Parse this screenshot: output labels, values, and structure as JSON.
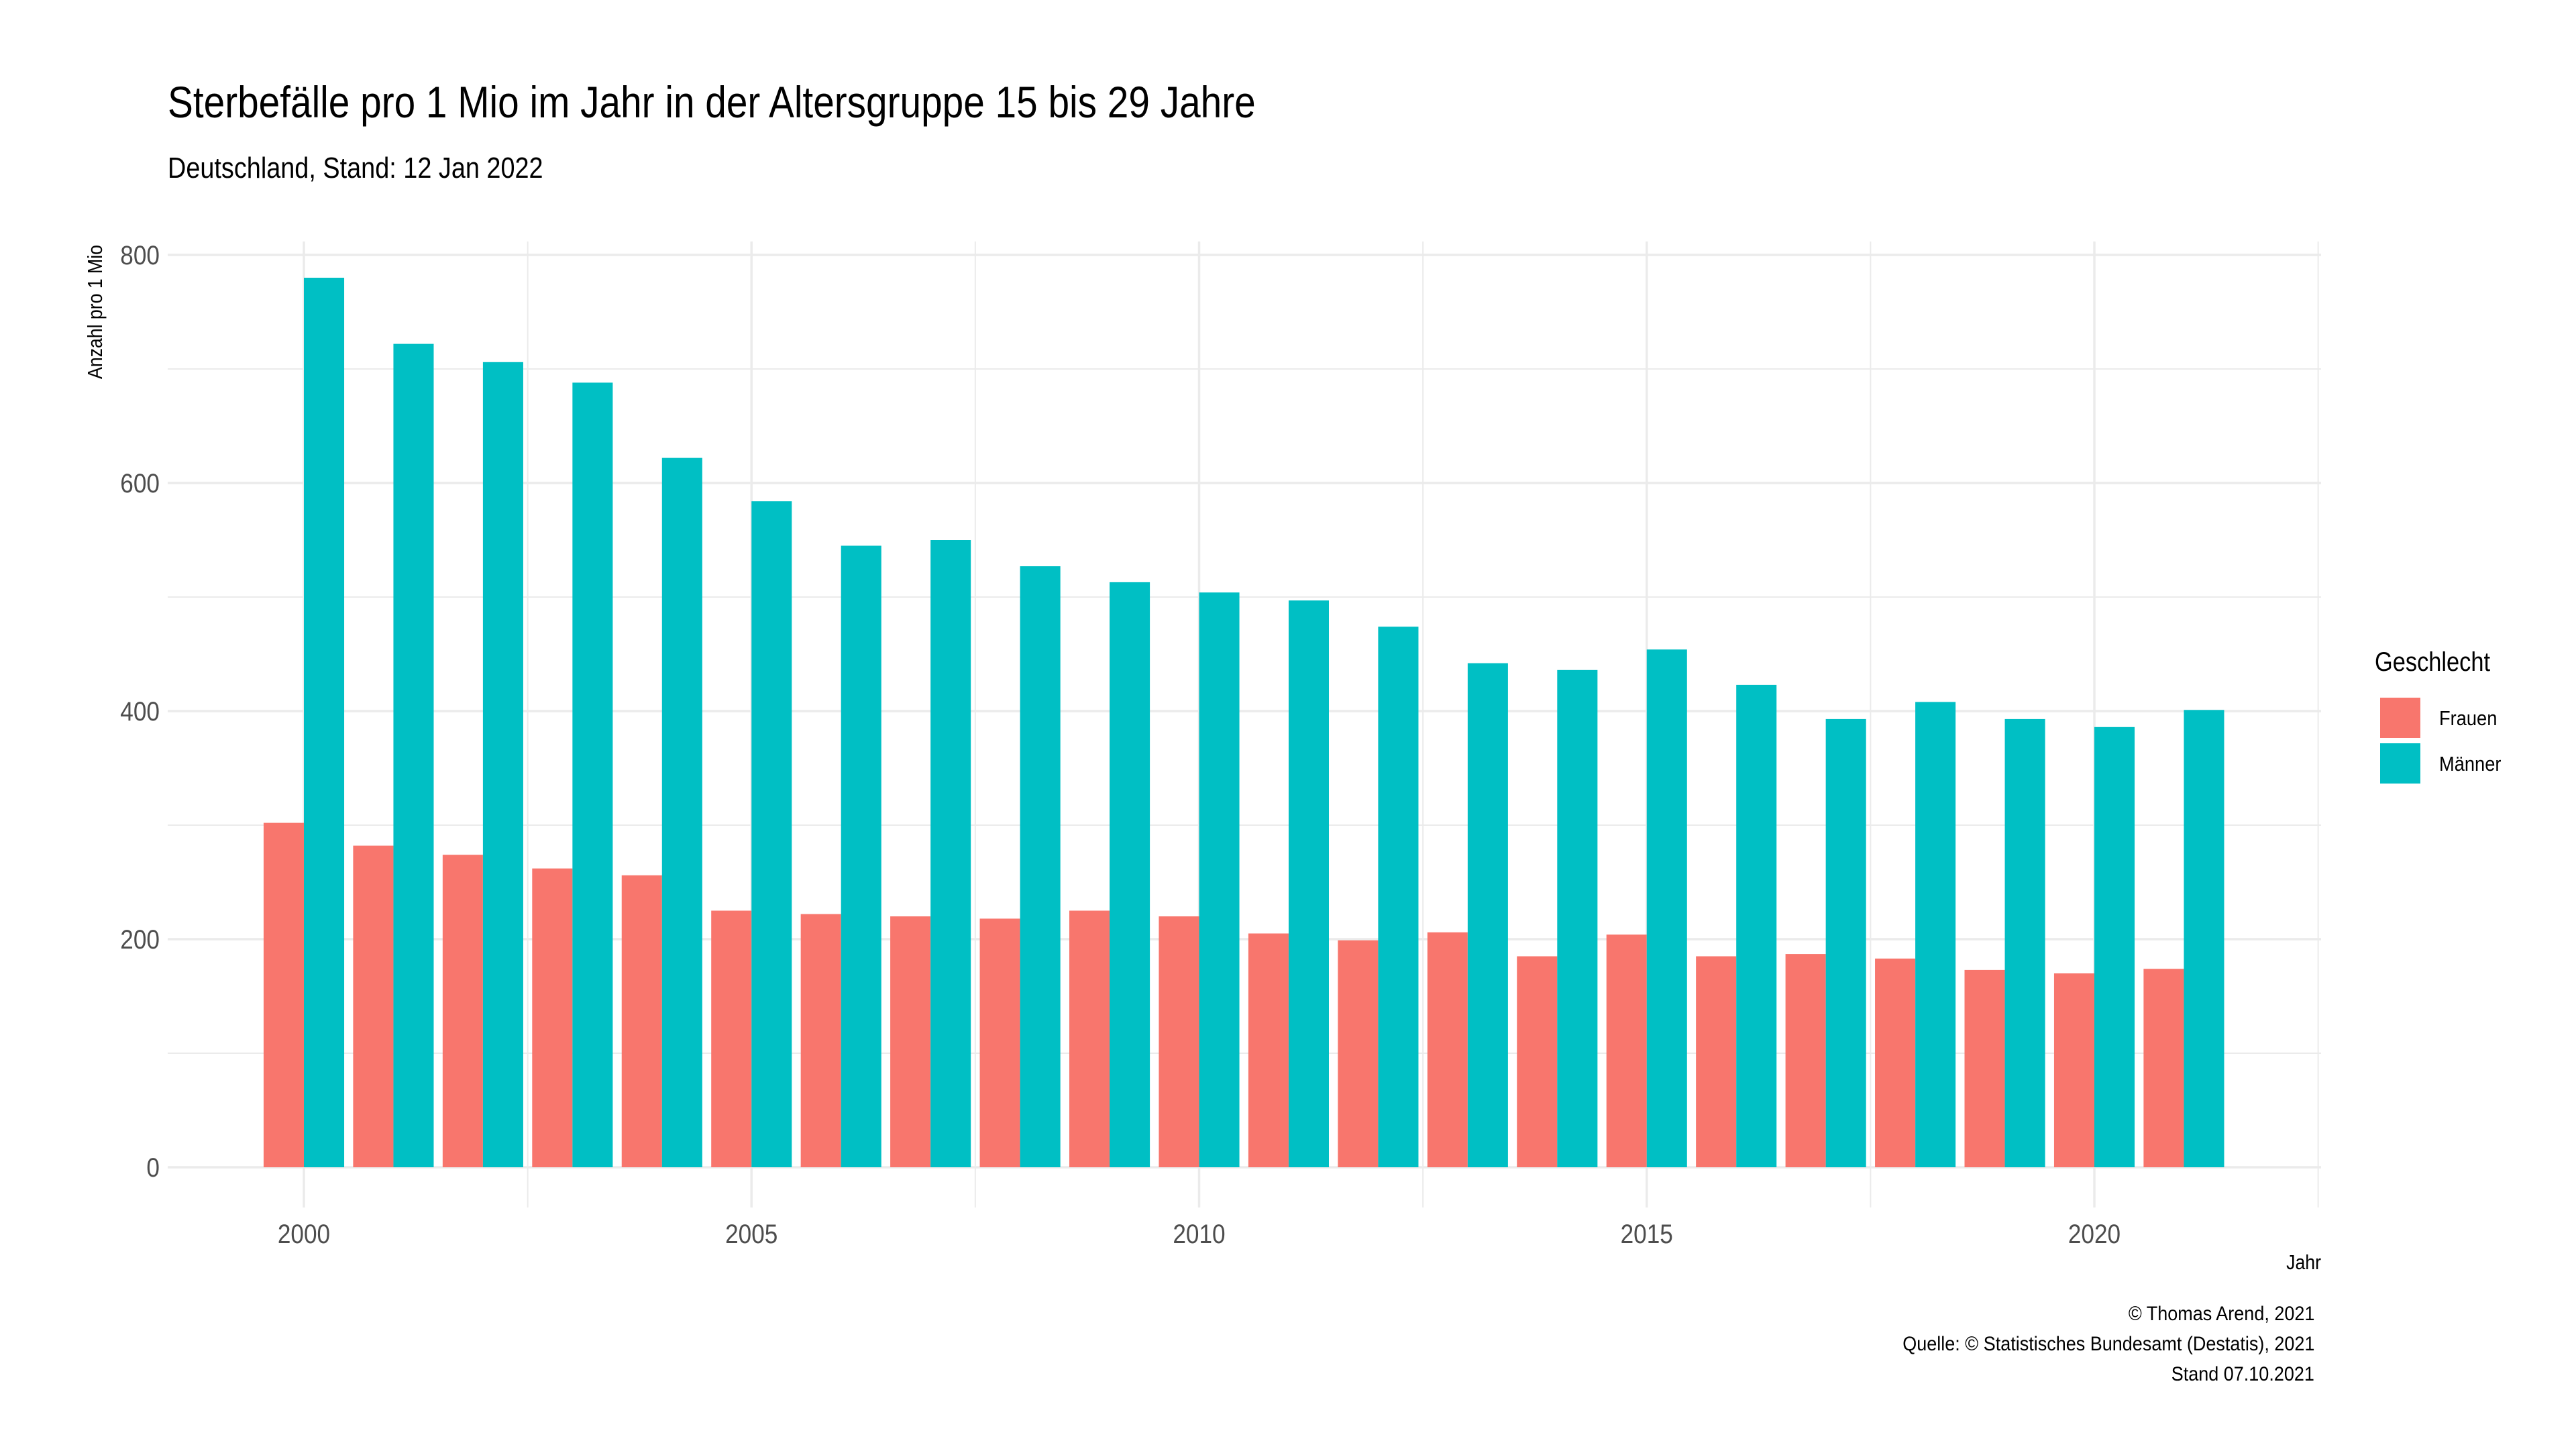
{
  "title": "Sterbefälle pro 1 Mio im Jahr in der Altersgruppe 15 bis 29 Jahre",
  "subtitle": "Deutschland, Stand: 12 Jan 2022",
  "caption": {
    "line1": "© Thomas Arend, 2021",
    "line2": "Quelle: © Statistisches Bundesamt (Destatis), 2021",
    "line3": "Stand 07.10.2021"
  },
  "legend": {
    "title": "Geschlecht",
    "placement": "right"
  },
  "colors": {
    "frauen": "#F8766D",
    "maenner": "#00BFC4",
    "grid": "#ebebeb",
    "tick": "#4d4d4d"
  },
  "chart_data": {
    "type": "bar",
    "xlabel": "Jahr",
    "ylabel": "Anzahl pro 1 Mio",
    "ylim": [
      0,
      800
    ],
    "yticks": [
      0,
      200,
      400,
      600,
      800
    ],
    "xticks": [
      2000,
      2005,
      2010,
      2015,
      2020
    ],
    "xlim": [
      1998.5,
      2022.5
    ],
    "grid": true,
    "x": [
      2000,
      2001,
      2002,
      2003,
      2004,
      2005,
      2006,
      2007,
      2008,
      2009,
      2010,
      2011,
      2012,
      2013,
      2014,
      2015,
      2016,
      2017,
      2018,
      2019,
      2020,
      2021
    ],
    "series": [
      {
        "name": "Frauen",
        "color": "#F8766D",
        "values": [
          302,
          282,
          274,
          262,
          256,
          225,
          222,
          220,
          218,
          225,
          220,
          205,
          199,
          206,
          185,
          204,
          185,
          187,
          183,
          173,
          170,
          174
        ]
      },
      {
        "name": "Männer",
        "color": "#00BFC4",
        "values": [
          780,
          722,
          706,
          688,
          622,
          584,
          545,
          550,
          527,
          513,
          504,
          497,
          474,
          442,
          436,
          454,
          423,
          393,
          408,
          393,
          386,
          401
        ]
      }
    ]
  }
}
